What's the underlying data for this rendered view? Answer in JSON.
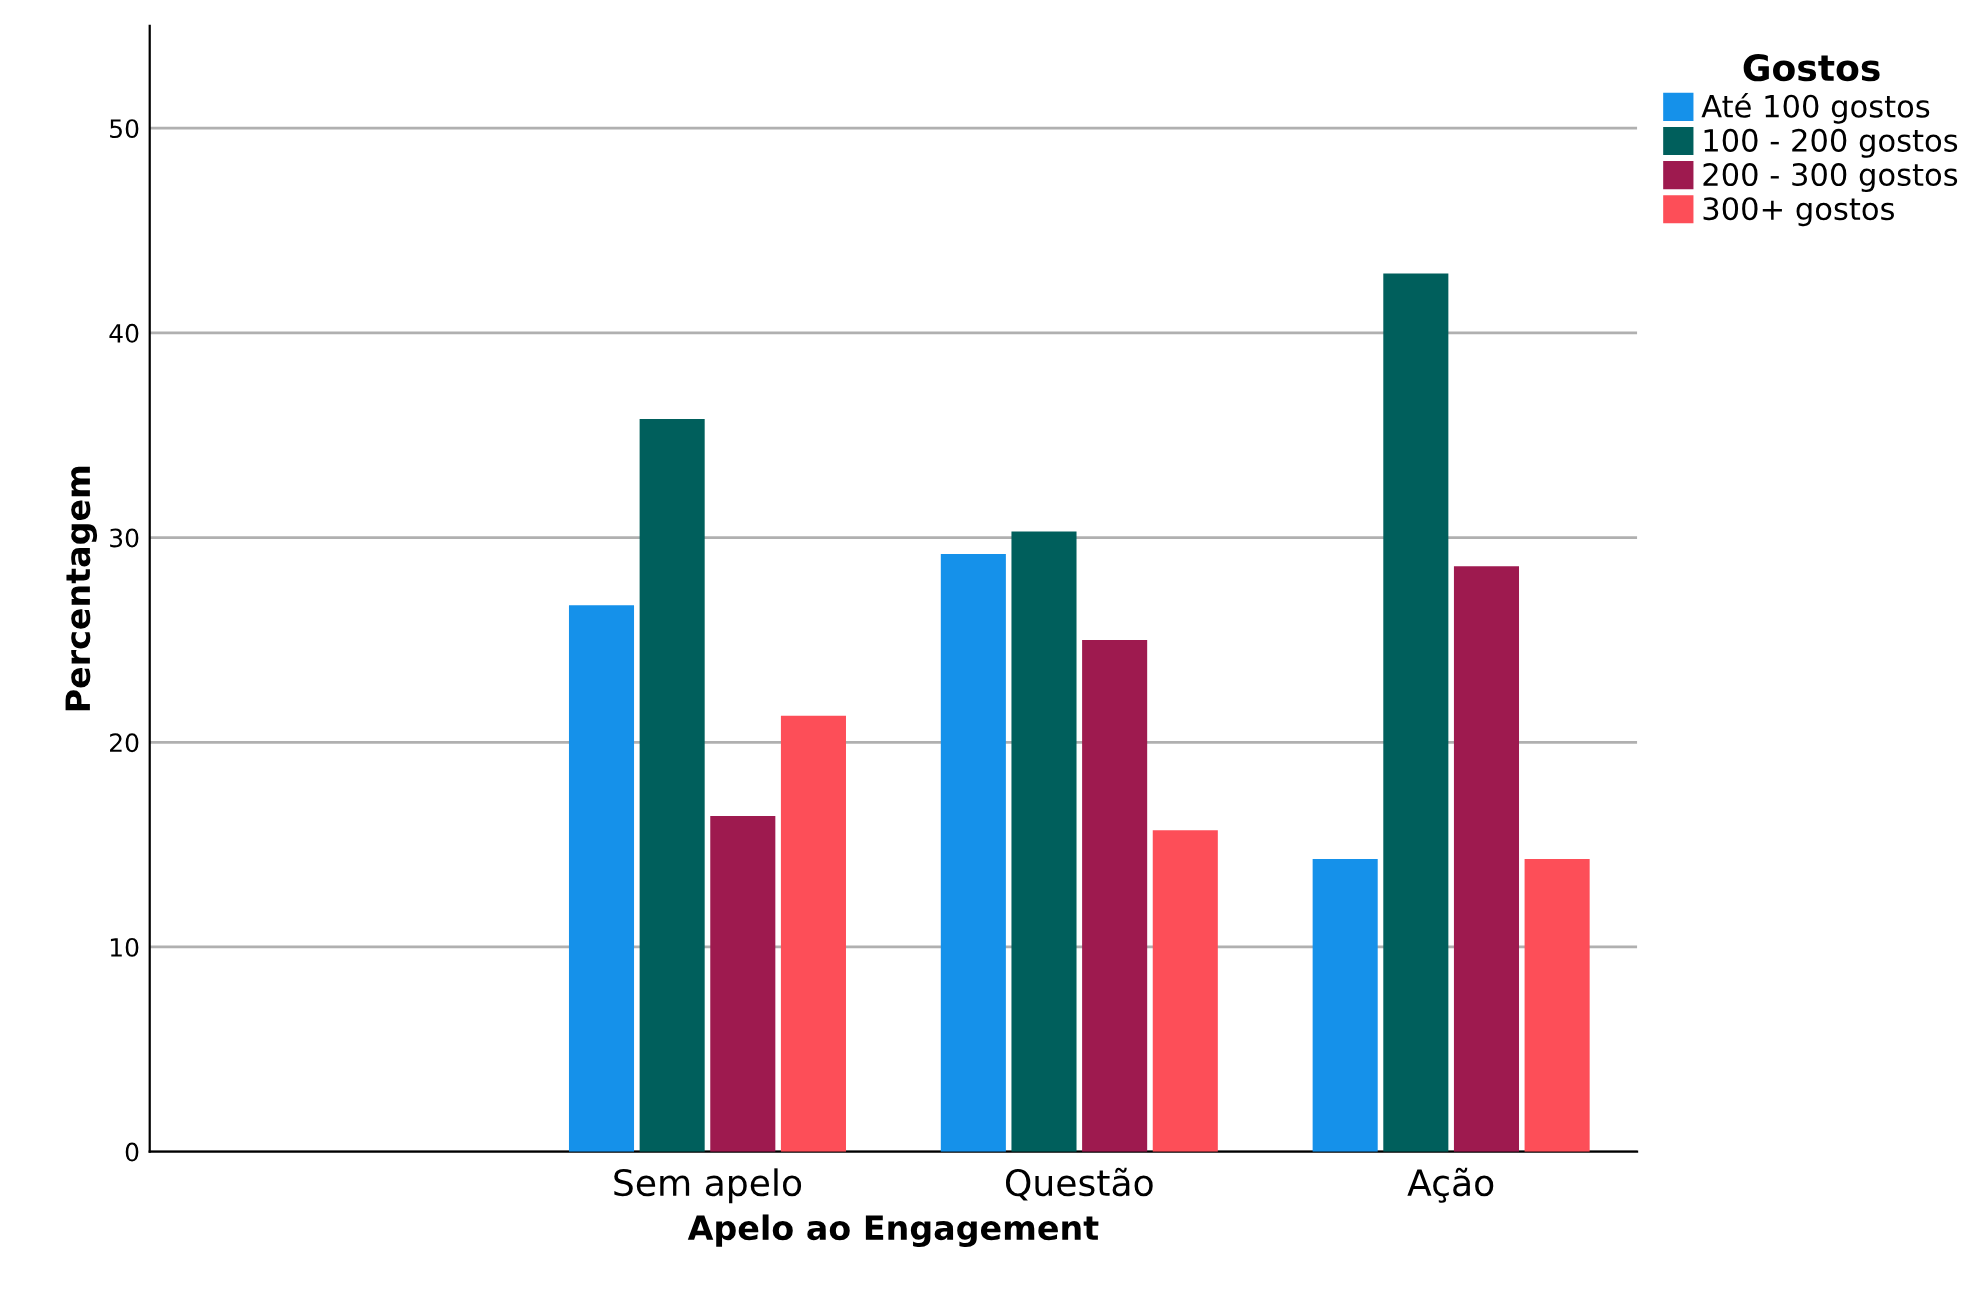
{
  "chart_data": {
    "type": "bar",
    "xlabel": "Apelo ao Engagement",
    "ylabel": "Percentagem",
    "legend_title": "Gostos",
    "categories": [
      null,
      "Sem apelo",
      "Questão",
      "Ação"
    ],
    "series": [
      {
        "name": "Até 100 gostos",
        "color": "#1591ea",
        "values": [
          null,
          26.7,
          29.2,
          14.3
        ]
      },
      {
        "name": "100 - 200 gostos",
        "color": "#005f5c",
        "values": [
          null,
          35.8,
          30.3,
          42.9
        ]
      },
      {
        "name": "200 - 300 gostos",
        "color": "#9e1a4f",
        "values": [
          null,
          16.4,
          25.0,
          28.6
        ]
      },
      {
        "name": "300+ gostos",
        "color": "#fd4e58",
        "values": [
          null,
          21.3,
          15.7,
          14.3
        ]
      }
    ],
    "ylim": [
      0,
      55
    ],
    "yticks": [
      0,
      10,
      20,
      30,
      40,
      50
    ],
    "grid": "y",
    "legend": "top right"
  }
}
